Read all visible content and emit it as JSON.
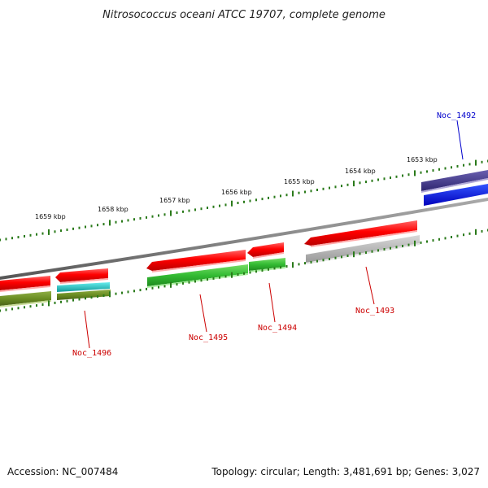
{
  "title": "Nitrosococcus oceani ATCC 19707, complete genome",
  "footer": {
    "accession": "Accession: NC_007484",
    "stats": "Topology: circular; Length: 3,481,691 bp; Genes: 3,027"
  },
  "scale_labels": [
    "1653 kbp",
    "1654 kbp",
    "1655 kbp",
    "1656 kbp",
    "1657 kbp",
    "1658 kbp",
    "1659 kbp"
  ],
  "gene_labels": [
    {
      "name": "Noc_1492",
      "color": "#0000cc"
    },
    {
      "name": "Noc_1493",
      "color": "#cc0000"
    },
    {
      "name": "Noc_1494",
      "color": "#cc0000"
    },
    {
      "name": "Noc_1495",
      "color": "#cc0000"
    },
    {
      "name": "Noc_1496",
      "color": "#cc0000"
    }
  ],
  "colors": {
    "backbone": "#888888",
    "cds": "#ff0000",
    "blue_feature": "#0000ff",
    "navy_feature": "#4a3f8f",
    "green_feature": "#33bb33",
    "olive_feature": "#6b8e23",
    "cyan_feature": "#22cccc",
    "grey_feature": "#b0b0b0",
    "tick_green": "#2a7a1a"
  }
}
